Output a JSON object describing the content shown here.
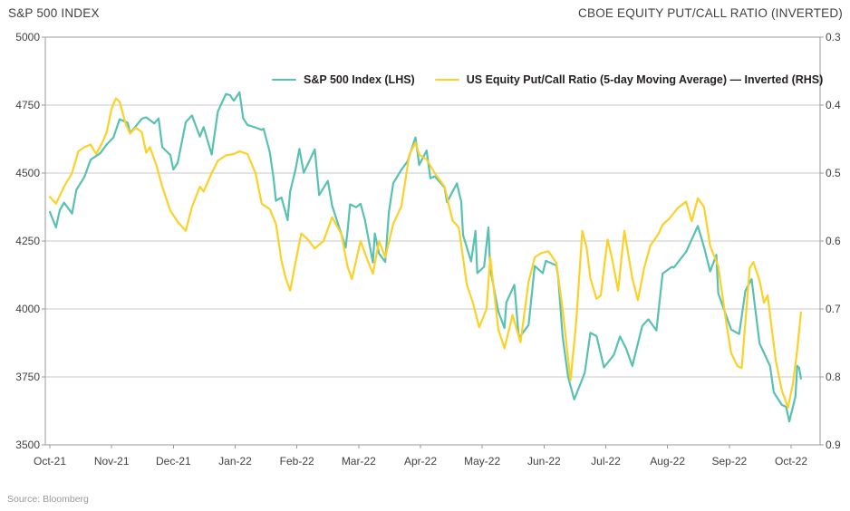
{
  "header": {
    "left_title": "S&P 500 INDEX",
    "right_title": "CBOE EQUITY PUT/CALL RATIO (INVERTED)"
  },
  "source": "Source: Bloomberg",
  "colors": {
    "sp500_line": "#57C1B2",
    "putcall_line": "#FBD128",
    "grid": "#C9CACB",
    "border": "#97999B",
    "axis_text": "#414042",
    "legend_text": "#231F20",
    "source_text": "#96989A"
  },
  "legend": [
    {
      "label": "S&P 500 Index (LHS)",
      "color": "#57C1B2"
    },
    {
      "label": "US Equity Put/Call Ratio (5-day Moving Average) — Inverted (RHS)",
      "color": "#FBD128"
    }
  ],
  "chart_data": {
    "type": "line",
    "title_left": "S&P 500 INDEX",
    "title_right": "CBOE EQUITY PUT/CALL RATIO (INVERTED)",
    "x_axis": {
      "tick_labels": [
        "Oct-21",
        "Nov-21",
        "Dec-21",
        "Jan-22",
        "Feb-22",
        "Mar-22",
        "Apr-22",
        "May-22",
        "Jun-22",
        "Jul-22",
        "Aug-22",
        "Sep-22",
        "Oct-22"
      ],
      "unit": "x values are fractional months since Oct-21 tick (0 = Oct 2021, 12 = Oct 2022)"
    },
    "y_left": {
      "ticks": [
        5000,
        4750,
        4500,
        4250,
        4000,
        3750,
        3500
      ],
      "range": [
        3500,
        5000
      ]
    },
    "y_right": {
      "ticks": [
        0.3,
        0.4,
        0.5,
        0.6,
        0.7,
        0.8,
        0.9
      ],
      "range": [
        0.3,
        0.9
      ],
      "inverted": true
    },
    "grid": "horizontal",
    "legend_position": "top-inside",
    "series": [
      {
        "name": "S&P 500 Index (LHS)",
        "axis": "left",
        "color": "#57C1B2",
        "points": [
          [
            0.0,
            4357
          ],
          [
            0.1,
            4300
          ],
          [
            0.16,
            4363
          ],
          [
            0.23,
            4391
          ],
          [
            0.36,
            4351
          ],
          [
            0.43,
            4438
          ],
          [
            0.56,
            4486
          ],
          [
            0.66,
            4549
          ],
          [
            0.82,
            4574
          ],
          [
            0.92,
            4605
          ],
          [
            1.03,
            4631
          ],
          [
            1.13,
            4698
          ],
          [
            1.26,
            4685
          ],
          [
            1.3,
            4647
          ],
          [
            1.49,
            4700
          ],
          [
            1.56,
            4705
          ],
          [
            1.69,
            4683
          ],
          [
            1.76,
            4701
          ],
          [
            1.82,
            4595
          ],
          [
            1.95,
            4567
          ],
          [
            2.0,
            4513
          ],
          [
            2.07,
            4538
          ],
          [
            2.2,
            4687
          ],
          [
            2.3,
            4712
          ],
          [
            2.43,
            4634
          ],
          [
            2.49,
            4669
          ],
          [
            2.62,
            4568
          ],
          [
            2.72,
            4726
          ],
          [
            2.85,
            4791
          ],
          [
            2.92,
            4786
          ],
          [
            2.98,
            4766
          ],
          [
            3.07,
            4797
          ],
          [
            3.13,
            4701
          ],
          [
            3.2,
            4677
          ],
          [
            3.3,
            4670
          ],
          [
            3.43,
            4659
          ],
          [
            3.46,
            4663
          ],
          [
            3.56,
            4577
          ],
          [
            3.62,
            4483
          ],
          [
            3.66,
            4398
          ],
          [
            3.75,
            4410
          ],
          [
            3.85,
            4327
          ],
          [
            3.89,
            4432
          ],
          [
            3.98,
            4516
          ],
          [
            4.04,
            4589
          ],
          [
            4.11,
            4501
          ],
          [
            4.29,
            4587
          ],
          [
            4.36,
            4419
          ],
          [
            4.5,
            4471
          ],
          [
            4.57,
            4380
          ],
          [
            4.79,
            4226
          ],
          [
            4.82,
            4289
          ],
          [
            4.86,
            4385
          ],
          [
            4.96,
            4374
          ],
          [
            5.03,
            4387
          ],
          [
            5.1,
            4329
          ],
          [
            5.23,
            4171
          ],
          [
            5.26,
            4278
          ],
          [
            5.33,
            4204
          ],
          [
            5.43,
            4173
          ],
          [
            5.49,
            4358
          ],
          [
            5.56,
            4463
          ],
          [
            5.69,
            4512
          ],
          [
            5.79,
            4543
          ],
          [
            5.92,
            4631
          ],
          [
            5.98,
            4530
          ],
          [
            6.1,
            4583
          ],
          [
            6.16,
            4481
          ],
          [
            6.23,
            4488
          ],
          [
            6.39,
            4447
          ],
          [
            6.43,
            4393
          ],
          [
            6.59,
            4462
          ],
          [
            6.66,
            4394
          ],
          [
            6.69,
            4272
          ],
          [
            6.82,
            4175
          ],
          [
            6.89,
            4287
          ],
          [
            6.92,
            4132
          ],
          [
            7.03,
            4155
          ],
          [
            7.1,
            4300
          ],
          [
            7.13,
            4147
          ],
          [
            7.26,
            3991
          ],
          [
            7.36,
            3930
          ],
          [
            7.39,
            4024
          ],
          [
            7.52,
            4089
          ],
          [
            7.59,
            3900
          ],
          [
            7.62,
            3901
          ],
          [
            7.75,
            3941
          ],
          [
            7.85,
            4158
          ],
          [
            7.98,
            4132
          ],
          [
            8.03,
            4177
          ],
          [
            8.2,
            4160
          ],
          [
            8.23,
            4116
          ],
          [
            8.3,
            3901
          ],
          [
            8.39,
            3750
          ],
          [
            8.49,
            3667
          ],
          [
            8.66,
            3765
          ],
          [
            8.75,
            3912
          ],
          [
            8.85,
            3900
          ],
          [
            8.97,
            3785
          ],
          [
            9.13,
            3831
          ],
          [
            9.23,
            3899
          ],
          [
            9.33,
            3854
          ],
          [
            9.43,
            3790
          ],
          [
            9.59,
            3937
          ],
          [
            9.69,
            3962
          ],
          [
            9.82,
            3921
          ],
          [
            9.92,
            4130
          ],
          [
            10.07,
            4155
          ],
          [
            10.1,
            4152
          ],
          [
            10.3,
            4210
          ],
          [
            10.49,
            4305
          ],
          [
            10.59,
            4228
          ],
          [
            10.69,
            4138
          ],
          [
            10.79,
            4199
          ],
          [
            10.82,
            4058
          ],
          [
            10.98,
            3955
          ],
          [
            11.03,
            3924
          ],
          [
            11.16,
            3908
          ],
          [
            11.26,
            4067
          ],
          [
            11.36,
            4110
          ],
          [
            11.49,
            3873
          ],
          [
            11.66,
            3790
          ],
          [
            11.72,
            3693
          ],
          [
            11.85,
            3647
          ],
          [
            11.92,
            3640
          ],
          [
            11.97,
            3586
          ],
          [
            12.07,
            3678
          ],
          [
            12.1,
            3791
          ],
          [
            12.13,
            3783
          ],
          [
            12.16,
            3744
          ]
        ]
      },
      {
        "name": "US Equity Put/Call Ratio (5-day Moving Average) — Inverted (RHS)",
        "axis": "right",
        "color": "#FBD128",
        "points": [
          [
            0.0,
            0.535
          ],
          [
            0.1,
            0.545
          ],
          [
            0.23,
            0.52
          ],
          [
            0.36,
            0.5
          ],
          [
            0.46,
            0.468
          ],
          [
            0.56,
            0.462
          ],
          [
            0.66,
            0.458
          ],
          [
            0.75,
            0.472
          ],
          [
            0.85,
            0.455
          ],
          [
            0.92,
            0.44
          ],
          [
            1.0,
            0.405
          ],
          [
            1.07,
            0.39
          ],
          [
            1.13,
            0.395
          ],
          [
            1.23,
            0.428
          ],
          [
            1.3,
            0.442
          ],
          [
            1.39,
            0.433
          ],
          [
            1.49,
            0.44
          ],
          [
            1.56,
            0.47
          ],
          [
            1.62,
            0.462
          ],
          [
            1.72,
            0.487
          ],
          [
            1.82,
            0.52
          ],
          [
            1.95,
            0.555
          ],
          [
            2.07,
            0.572
          ],
          [
            2.2,
            0.585
          ],
          [
            2.3,
            0.55
          ],
          [
            2.43,
            0.52
          ],
          [
            2.49,
            0.527
          ],
          [
            2.62,
            0.5
          ],
          [
            2.72,
            0.482
          ],
          [
            2.85,
            0.474
          ],
          [
            2.98,
            0.472
          ],
          [
            3.07,
            0.468
          ],
          [
            3.2,
            0.472
          ],
          [
            3.33,
            0.5
          ],
          [
            3.43,
            0.545
          ],
          [
            3.56,
            0.553
          ],
          [
            3.66,
            0.575
          ],
          [
            3.75,
            0.629
          ],
          [
            3.82,
            0.655
          ],
          [
            3.89,
            0.673
          ],
          [
            3.98,
            0.63
          ],
          [
            4.07,
            0.589
          ],
          [
            4.18,
            0.598
          ],
          [
            4.29,
            0.611
          ],
          [
            4.43,
            0.6
          ],
          [
            4.57,
            0.565
          ],
          [
            4.72,
            0.59
          ],
          [
            4.82,
            0.638
          ],
          [
            4.89,
            0.656
          ],
          [
            5.03,
            0.6
          ],
          [
            5.13,
            0.625
          ],
          [
            5.23,
            0.648
          ],
          [
            5.33,
            0.6
          ],
          [
            5.43,
            0.624
          ],
          [
            5.56,
            0.575
          ],
          [
            5.69,
            0.549
          ],
          [
            5.82,
            0.473
          ],
          [
            5.92,
            0.455
          ],
          [
            5.98,
            0.473
          ],
          [
            6.1,
            0.48
          ],
          [
            6.23,
            0.5
          ],
          [
            6.39,
            0.52
          ],
          [
            6.52,
            0.57
          ],
          [
            6.62,
            0.58
          ],
          [
            6.75,
            0.664
          ],
          [
            6.85,
            0.691
          ],
          [
            6.95,
            0.727
          ],
          [
            7.07,
            0.7
          ],
          [
            7.13,
            0.624
          ],
          [
            7.26,
            0.73
          ],
          [
            7.36,
            0.758
          ],
          [
            7.49,
            0.709
          ],
          [
            7.62,
            0.749
          ],
          [
            7.75,
            0.66
          ],
          [
            7.85,
            0.624
          ],
          [
            7.95,
            0.618
          ],
          [
            8.07,
            0.615
          ],
          [
            8.2,
            0.632
          ],
          [
            8.3,
            0.7
          ],
          [
            8.43,
            0.805
          ],
          [
            8.52,
            0.72
          ],
          [
            8.62,
            0.585
          ],
          [
            8.69,
            0.61
          ],
          [
            8.75,
            0.655
          ],
          [
            8.85,
            0.685
          ],
          [
            8.92,
            0.68
          ],
          [
            8.97,
            0.64
          ],
          [
            9.03,
            0.598
          ],
          [
            9.1,
            0.625
          ],
          [
            9.2,
            0.673
          ],
          [
            9.3,
            0.585
          ],
          [
            9.43,
            0.655
          ],
          [
            9.52,
            0.687
          ],
          [
            9.62,
            0.64
          ],
          [
            9.72,
            0.607
          ],
          [
            9.85,
            0.59
          ],
          [
            9.92,
            0.576
          ],
          [
            10.03,
            0.567
          ],
          [
            10.16,
            0.552
          ],
          [
            10.3,
            0.542
          ],
          [
            10.39,
            0.571
          ],
          [
            10.49,
            0.537
          ],
          [
            10.59,
            0.55
          ],
          [
            10.69,
            0.607
          ],
          [
            10.82,
            0.637
          ],
          [
            10.95,
            0.72
          ],
          [
            11.03,
            0.765
          ],
          [
            11.13,
            0.784
          ],
          [
            11.2,
            0.787
          ],
          [
            11.33,
            0.64
          ],
          [
            11.39,
            0.631
          ],
          [
            11.49,
            0.658
          ],
          [
            11.56,
            0.691
          ],
          [
            11.62,
            0.68
          ],
          [
            11.75,
            0.775
          ],
          [
            11.85,
            0.82
          ],
          [
            11.95,
            0.845
          ],
          [
            12.03,
            0.81
          ],
          [
            12.1,
            0.76
          ],
          [
            12.16,
            0.705
          ]
        ]
      }
    ]
  }
}
